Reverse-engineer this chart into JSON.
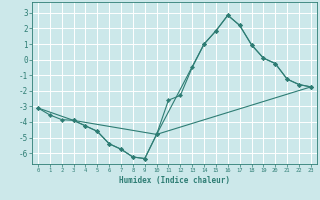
{
  "background_color": "#cce8ea",
  "grid_color": "#ffffff",
  "line_color": "#2e7d74",
  "xlabel": "Humidex (Indice chaleur)",
  "xlim": [
    -0.5,
    23.5
  ],
  "ylim": [
    -6.7,
    3.7
  ],
  "yticks": [
    -6,
    -5,
    -4,
    -3,
    -2,
    -1,
    0,
    1,
    2,
    3
  ],
  "xticks": [
    0,
    1,
    2,
    3,
    4,
    5,
    6,
    7,
    8,
    9,
    10,
    11,
    12,
    13,
    14,
    15,
    16,
    17,
    18,
    19,
    20,
    21,
    22,
    23
  ],
  "curve1_x": [
    0,
    1,
    2,
    3,
    4,
    5,
    6,
    7,
    8,
    9,
    10,
    11,
    12,
    13,
    14,
    15,
    16,
    17,
    18,
    19,
    20,
    21,
    22,
    23
  ],
  "curve1_y": [
    -3.1,
    -3.55,
    -3.85,
    -3.9,
    -4.25,
    -4.6,
    -5.4,
    -5.75,
    -6.25,
    -6.35,
    -4.8,
    -2.6,
    -2.3,
    -0.5,
    1.0,
    1.85,
    2.85,
    2.2,
    0.95,
    0.1,
    -0.25,
    -1.25,
    -1.6,
    -1.75
  ],
  "curve2_x": [
    0,
    3,
    10,
    14,
    15,
    16,
    17,
    18,
    19,
    20,
    21,
    22,
    23
  ],
  "curve2_y": [
    -3.1,
    -3.9,
    -4.8,
    1.0,
    1.85,
    2.85,
    2.2,
    0.95,
    0.1,
    -0.25,
    -1.25,
    -1.6,
    -1.75
  ],
  "curve3_x": [
    3,
    4,
    5,
    6,
    7,
    8,
    9,
    10,
    23
  ],
  "curve3_y": [
    -3.9,
    -4.25,
    -4.6,
    -5.4,
    -5.75,
    -6.25,
    -6.35,
    -4.8,
    -1.75
  ]
}
